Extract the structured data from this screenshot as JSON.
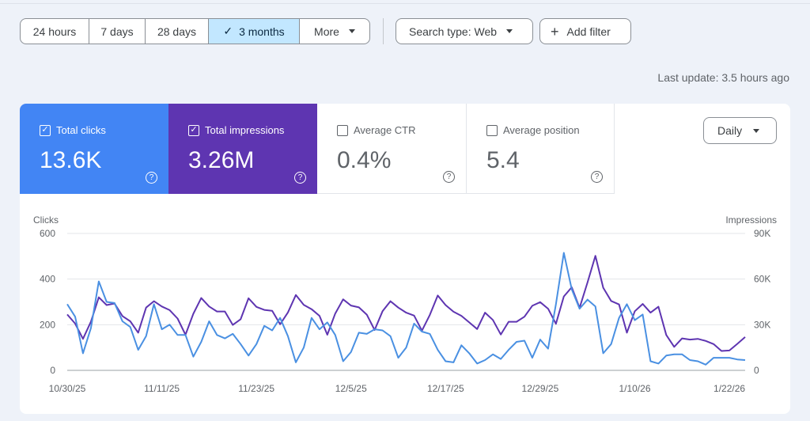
{
  "range_options": [
    {
      "label": "24 hours",
      "selected": false
    },
    {
      "label": "7 days",
      "selected": false
    },
    {
      "label": "28 days",
      "selected": false
    },
    {
      "label": "3 months",
      "selected": true
    },
    {
      "label": "More",
      "selected": false
    }
  ],
  "filters": {
    "search_type": "Search type: Web",
    "add_filter": "Add filter"
  },
  "last_update": "Last update: 3.5 hours ago",
  "metrics": {
    "clicks": {
      "label": "Total clicks",
      "value": "13.6K",
      "checked": true,
      "color": "#4285f4"
    },
    "impressions": {
      "label": "Total impressions",
      "value": "3.26M",
      "checked": true,
      "color": "#5e35b1"
    },
    "ctr": {
      "label": "Average CTR",
      "value": "0.4%",
      "checked": false
    },
    "position": {
      "label": "Average position",
      "value": "5.4",
      "checked": false
    }
  },
  "granularity": "Daily",
  "chart_data": {
    "type": "line",
    "left_axis_label": "Clicks",
    "right_axis_label": "Impressions",
    "left_ticks": [
      "0",
      "200",
      "400",
      "600"
    ],
    "right_ticks": [
      "0",
      "30K",
      "60K",
      "90K"
    ],
    "ylim_left": [
      0,
      600
    ],
    "ylim_right": [
      0,
      90000
    ],
    "x_ticks": [
      "10/30/25",
      "11/11/25",
      "11/23/25",
      "12/5/25",
      "12/17/25",
      "12/29/25",
      "1/10/26",
      "1/22/26"
    ],
    "x_start": "10/30/25",
    "grid": true,
    "series": [
      {
        "name": "Clicks",
        "color": "#4a90e2",
        "axis": "left",
        "values": [
          290,
          235,
          75,
          185,
          390,
          300,
          295,
          215,
          190,
          90,
          150,
          290,
          180,
          200,
          155,
          155,
          60,
          125,
          215,
          155,
          140,
          160,
          115,
          65,
          115,
          195,
          175,
          230,
          150,
          35,
          100,
          230,
          180,
          210,
          155,
          40,
          80,
          165,
          160,
          180,
          175,
          150,
          55,
          100,
          205,
          170,
          160,
          90,
          40,
          35,
          110,
          75,
          30,
          45,
          70,
          50,
          90,
          125,
          130,
          55,
          135,
          95,
          290,
          515,
          355,
          270,
          310,
          280,
          75,
          115,
          230,
          290,
          220,
          245,
          40,
          30,
          65,
          70,
          70,
          45,
          40,
          25,
          55,
          55,
          55,
          48,
          45
        ]
      },
      {
        "name": "Impressions",
        "color": "#5e35b1",
        "axis": "right",
        "values": [
          36750,
          30750,
          20700,
          31950,
          48000,
          42900,
          43950,
          35700,
          32250,
          24750,
          41250,
          45450,
          42000,
          39600,
          34050,
          23400,
          37200,
          47550,
          42000,
          38700,
          38700,
          29850,
          33600,
          47400,
          41700,
          39750,
          39150,
          30300,
          38100,
          49500,
          43050,
          40200,
          35850,
          23400,
          37350,
          46650,
          42600,
          41400,
          36600,
          26550,
          38850,
          45450,
          41250,
          37950,
          36000,
          26100,
          36450,
          49200,
          42900,
          38550,
          35850,
          31500,
          27150,
          37950,
          33150,
          23550,
          31950,
          31950,
          35250,
          42450,
          44850,
          40500,
          30600,
          48600,
          54600,
          41100,
          57750,
          75300,
          54300,
          45600,
          43350,
          24750,
          38850,
          43650,
          37950,
          41850,
          23250,
          15450,
          21000,
          20250,
          20700,
          19350,
          17250,
          12750,
          13050,
          17400,
          21900
        ]
      }
    ]
  }
}
